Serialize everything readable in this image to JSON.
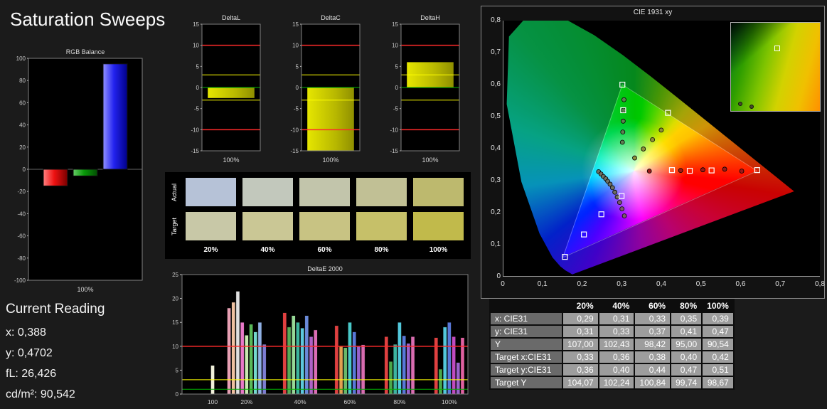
{
  "page": {
    "title": "Saturation Sweeps"
  },
  "current_reading": {
    "heading": "Current Reading",
    "lines": [
      "x: 0,388",
      "y: 0,4702",
      "fL: 26,426",
      "cd/m²: 90,542"
    ]
  },
  "values_table": {
    "headers": [
      "",
      "20%",
      "40%",
      "60%",
      "80%",
      "100%"
    ],
    "rows": [
      {
        "label": "x: CIE31",
        "values": [
          "0,29",
          "0,31",
          "0,33",
          "0,35",
          "0,39"
        ]
      },
      {
        "label": "y: CIE31",
        "values": [
          "0,31",
          "0,33",
          "0,37",
          "0,41",
          "0,47"
        ]
      },
      {
        "label": "Y",
        "values": [
          "107,00",
          "102,43",
          "98,42",
          "95,00",
          "90,54"
        ]
      },
      {
        "label": "Target x:CIE31",
        "values": [
          "0,33",
          "0,36",
          "0,38",
          "0,40",
          "0,42"
        ]
      },
      {
        "label": "Target y:CIE31",
        "values": [
          "0,36",
          "0,40",
          "0,44",
          "0,47",
          "0,51"
        ]
      },
      {
        "label": "Target Y",
        "values": [
          "104,07",
          "102,24",
          "100,84",
          "99,74",
          "98,67"
        ]
      }
    ]
  },
  "chart_data": [
    {
      "id": "rgb_balance",
      "type": "bar",
      "title": "RGB Balance",
      "categories": [
        "100%"
      ],
      "xlabel": "100%",
      "ylim": [
        -100,
        100
      ],
      "yticks": [
        100,
        80,
        60,
        40,
        20,
        0,
        -20,
        -40,
        -60,
        -80,
        -100
      ],
      "series": [
        {
          "name": "red",
          "color": "#dd0000",
          "value": -15
        },
        {
          "name": "green",
          "color": "#009900",
          "value": -6
        },
        {
          "name": "blue",
          "color": "#2222ee",
          "value": 95
        }
      ]
    },
    {
      "id": "deltaL",
      "type": "bar",
      "title": "DeltaL",
      "xlabel": "100%",
      "ylim": [
        -15,
        15
      ],
      "yticks": [
        15,
        10,
        5,
        0,
        -5,
        -10,
        -15
      ],
      "value": -2.5,
      "bar_color": "#c6c600",
      "ref_lines": [
        {
          "y": 10,
          "color": "#ff2a2a"
        },
        {
          "y": -10,
          "color": "#ff2a2a"
        },
        {
          "y": 3,
          "color": "#ffff00"
        },
        {
          "y": -3,
          "color": "#ffff00"
        },
        {
          "y": 0,
          "color": "#00b400"
        }
      ]
    },
    {
      "id": "deltaC",
      "type": "bar",
      "title": "DeltaC",
      "xlabel": "100%",
      "ylim": [
        -15,
        15
      ],
      "yticks": [
        15,
        10,
        5,
        0,
        -5,
        -10,
        -15
      ],
      "value": -15,
      "bar_color": "#c6c600",
      "ref_lines": [
        {
          "y": 10,
          "color": "#ff2a2a"
        },
        {
          "y": -10,
          "color": "#ff2a2a"
        },
        {
          "y": 3,
          "color": "#ffff00"
        },
        {
          "y": -3,
          "color": "#ffff00"
        },
        {
          "y": 0,
          "color": "#00b400"
        }
      ]
    },
    {
      "id": "deltaH",
      "type": "bar",
      "title": "DeltaH",
      "xlabel": "100%",
      "ylim": [
        -15,
        15
      ],
      "yticks": [
        15,
        10,
        5,
        0,
        -5,
        -10,
        -15
      ],
      "value": 6,
      "bar_color": "#c6c600",
      "ref_lines": [
        {
          "y": 10,
          "color": "#ff2a2a"
        },
        {
          "y": -10,
          "color": "#ff2a2a"
        },
        {
          "y": 3,
          "color": "#ffff00"
        },
        {
          "y": -3,
          "color": "#ffff00"
        },
        {
          "y": 0,
          "color": "#00b400"
        }
      ]
    },
    {
      "id": "saturation_swatches",
      "type": "table",
      "row_labels": [
        "Actual",
        "Target"
      ],
      "col_labels": [
        "20%",
        "40%",
        "60%",
        "80%",
        "100%"
      ],
      "actual_colors": [
        "#b6c2d7",
        "#c2c8bc",
        "#c2c5ab",
        "#c1c095",
        "#bdb96e"
      ],
      "target_colors": [
        "#c8c8a7",
        "#cac795",
        "#c8c383",
        "#c6c069",
        "#c1ba4b"
      ]
    },
    {
      "id": "deltaE2000",
      "type": "bar",
      "title": "DeltaE 2000",
      "ylim": [
        0,
        25
      ],
      "yticks": [
        25,
        20,
        15,
        10,
        5,
        0
      ],
      "ref_lines": [
        {
          "y": 10,
          "color": "#ff2a2a"
        },
        {
          "y": 3,
          "color": "#ffff00"
        },
        {
          "y": 1,
          "color": "#00b400"
        }
      ],
      "groups": [
        {
          "label": "100",
          "bars": [
            {
              "color": "#f0f0da",
              "value": 6
            }
          ]
        },
        {
          "label": "20%",
          "bars": [
            {
              "color": "#e8a0b4",
              "value": 18
            },
            {
              "color": "#eec0a0",
              "value": 19.2
            },
            {
              "color": "#e0e0e0",
              "value": 21.5
            },
            {
              "color": "#e878c8",
              "value": 15
            },
            {
              "color": "#c8e8b0",
              "value": 12.3
            },
            {
              "color": "#58b858",
              "value": 14.6
            },
            {
              "color": "#74d8cc",
              "value": 13
            },
            {
              "color": "#8fb0e4",
              "value": 15
            },
            {
              "color": "#7d7dd2",
              "value": 10.4
            }
          ]
        },
        {
          "label": "40%",
          "bars": [
            {
              "color": "#e04040",
              "value": 17
            },
            {
              "color": "#56ac56",
              "value": 14
            },
            {
              "color": "#96d896",
              "value": 16.4
            },
            {
              "color": "#3cb49c",
              "value": 15
            },
            {
              "color": "#5cc8dc",
              "value": 13.8
            },
            {
              "color": "#6a8ad8",
              "value": 16.4
            },
            {
              "color": "#b062c8",
              "value": 12
            },
            {
              "color": "#dc6cb4",
              "value": 13.4
            }
          ]
        },
        {
          "label": "60%",
          "bars": [
            {
              "color": "#e04040",
              "value": 14.3
            },
            {
              "color": "#e0a050",
              "value": 9.9
            },
            {
              "color": "#68b868",
              "value": 9.7
            },
            {
              "color": "#48c8c8",
              "value": 15
            },
            {
              "color": "#5878d8",
              "value": 13
            },
            {
              "color": "#9a62cc",
              "value": 9.9
            },
            {
              "color": "#d86cb0",
              "value": 10.3
            }
          ]
        },
        {
          "label": "80%",
          "bars": [
            {
              "color": "#e04040",
              "value": 12
            },
            {
              "color": "#4aa84a",
              "value": 6.8
            },
            {
              "color": "#3cb4a0",
              "value": 10.4
            },
            {
              "color": "#52c8dc",
              "value": 15
            },
            {
              "color": "#5878d8",
              "value": 12.2
            },
            {
              "color": "#9a62cc",
              "value": 10.6
            },
            {
              "color": "#d86cb0",
              "value": 12
            }
          ]
        },
        {
          "label": "100%",
          "bars": [
            {
              "color": "#e04040",
              "value": 11.8
            },
            {
              "color": "#4aa84a",
              "value": 5.2
            },
            {
              "color": "#52c8dc",
              "value": 14
            },
            {
              "color": "#5878d8",
              "value": 15
            },
            {
              "color": "#c04ac0",
              "value": 12
            },
            {
              "color": "#9a62cc",
              "value": 6.6
            },
            {
              "color": "#e060a0",
              "value": 11.8
            }
          ]
        }
      ]
    },
    {
      "id": "cie1931",
      "type": "scatter",
      "title": "CIE 1931 xy",
      "xlim": [
        0,
        0.8
      ],
      "ylim": [
        0,
        0.8
      ],
      "xtick_labels": [
        "0",
        "0,1",
        "0,2",
        "0,3",
        "0,4",
        "0,5",
        "0,6",
        "0,7",
        "0,8"
      ],
      "ytick_labels": [
        "0",
        "0,1",
        "0,2",
        "0,3",
        "0,4",
        "0,5",
        "0,6",
        "0,7",
        "0,8"
      ],
      "spectral_locus": [
        [
          0.1741,
          0.005
        ],
        [
          0.1566,
          0.0177
        ],
        [
          0.144,
          0.0297
        ],
        [
          0.1241,
          0.0578
        ],
        [
          0.0913,
          0.1327
        ],
        [
          0.0454,
          0.295
        ],
        [
          0.0082,
          0.5384
        ],
        [
          0.0139,
          0.7502
        ],
        [
          0.0743,
          0.8338
        ],
        [
          0.1547,
          0.8059
        ],
        [
          0.2296,
          0.7543
        ],
        [
          0.3016,
          0.6923
        ],
        [
          0.3731,
          0.6245
        ],
        [
          0.4441,
          0.5547
        ],
        [
          0.5125,
          0.4866
        ],
        [
          0.5752,
          0.4242
        ],
        [
          0.627,
          0.3725
        ],
        [
          0.6658,
          0.334
        ],
        [
          0.6915,
          0.3083
        ],
        [
          0.7079,
          0.292
        ],
        [
          0.719,
          0.2809
        ],
        [
          0.7347,
          0.2653
        ]
      ],
      "gamut_triangle": [
        [
          0.64,
          0.33
        ],
        [
          0.3,
          0.6
        ],
        [
          0.15,
          0.06
        ]
      ],
      "target_squares": [
        [
          0.64,
          0.333
        ],
        [
          0.525,
          0.332
        ],
        [
          0.47,
          0.331
        ],
        [
          0.425,
          0.333
        ],
        [
          0.415,
          0.512
        ],
        [
          0.3,
          0.6
        ],
        [
          0.302,
          0.52
        ],
        [
          0.298,
          0.252
        ],
        [
          0.247,
          0.195
        ],
        [
          0.203,
          0.132
        ],
        [
          0.155,
          0.062
        ]
      ],
      "measured_points": [
        [
          0.368,
          0.33,
          "#9a1a1a"
        ],
        [
          0.447,
          0.332,
          "#9a1a1a"
        ],
        [
          0.503,
          0.334,
          "#9a1a1a"
        ],
        [
          0.558,
          0.336,
          "#9a1a1a"
        ],
        [
          0.601,
          0.33,
          "#9a1a1a"
        ],
        [
          0.24,
          0.328,
          "#6f6f62"
        ],
        [
          0.246,
          0.321,
          "#6f6f62"
        ],
        [
          0.252,
          0.313,
          "#6f6f62"
        ],
        [
          0.258,
          0.306,
          "#6f6f62"
        ],
        [
          0.263,
          0.298,
          "#6f6f62"
        ],
        [
          0.269,
          0.289,
          "#6f6f62"
        ],
        [
          0.275,
          0.278,
          "#6f6f62"
        ],
        [
          0.281,
          0.264,
          "#6f6f62"
        ],
        [
          0.287,
          0.249,
          "#6f6f62"
        ],
        [
          0.293,
          0.232,
          "#7a5a6a"
        ],
        [
          0.299,
          0.212,
          "#7a5a6a"
        ],
        [
          0.305,
          0.19,
          "#7a5a6a"
        ],
        [
          0.3,
          0.42,
          "#5f7f52"
        ],
        [
          0.301,
          0.452,
          "#5f7f52"
        ],
        [
          0.302,
          0.486,
          "#5f7f52"
        ],
        [
          0.303,
          0.52,
          "#5f7f52"
        ],
        [
          0.304,
          0.553,
          "#5f7f52"
        ],
        [
          0.331,
          0.371,
          "#8f8f3a"
        ],
        [
          0.353,
          0.399,
          "#8f8f3a"
        ],
        [
          0.376,
          0.428,
          "#8f8f3a"
        ],
        [
          0.398,
          0.458,
          "#8f8f3a"
        ]
      ],
      "inset": {
        "square": [
          0.52,
          0.29
        ],
        "circles": [
          [
            0.1,
            0.92
          ],
          [
            0.23,
            0.95
          ]
        ]
      }
    }
  ]
}
